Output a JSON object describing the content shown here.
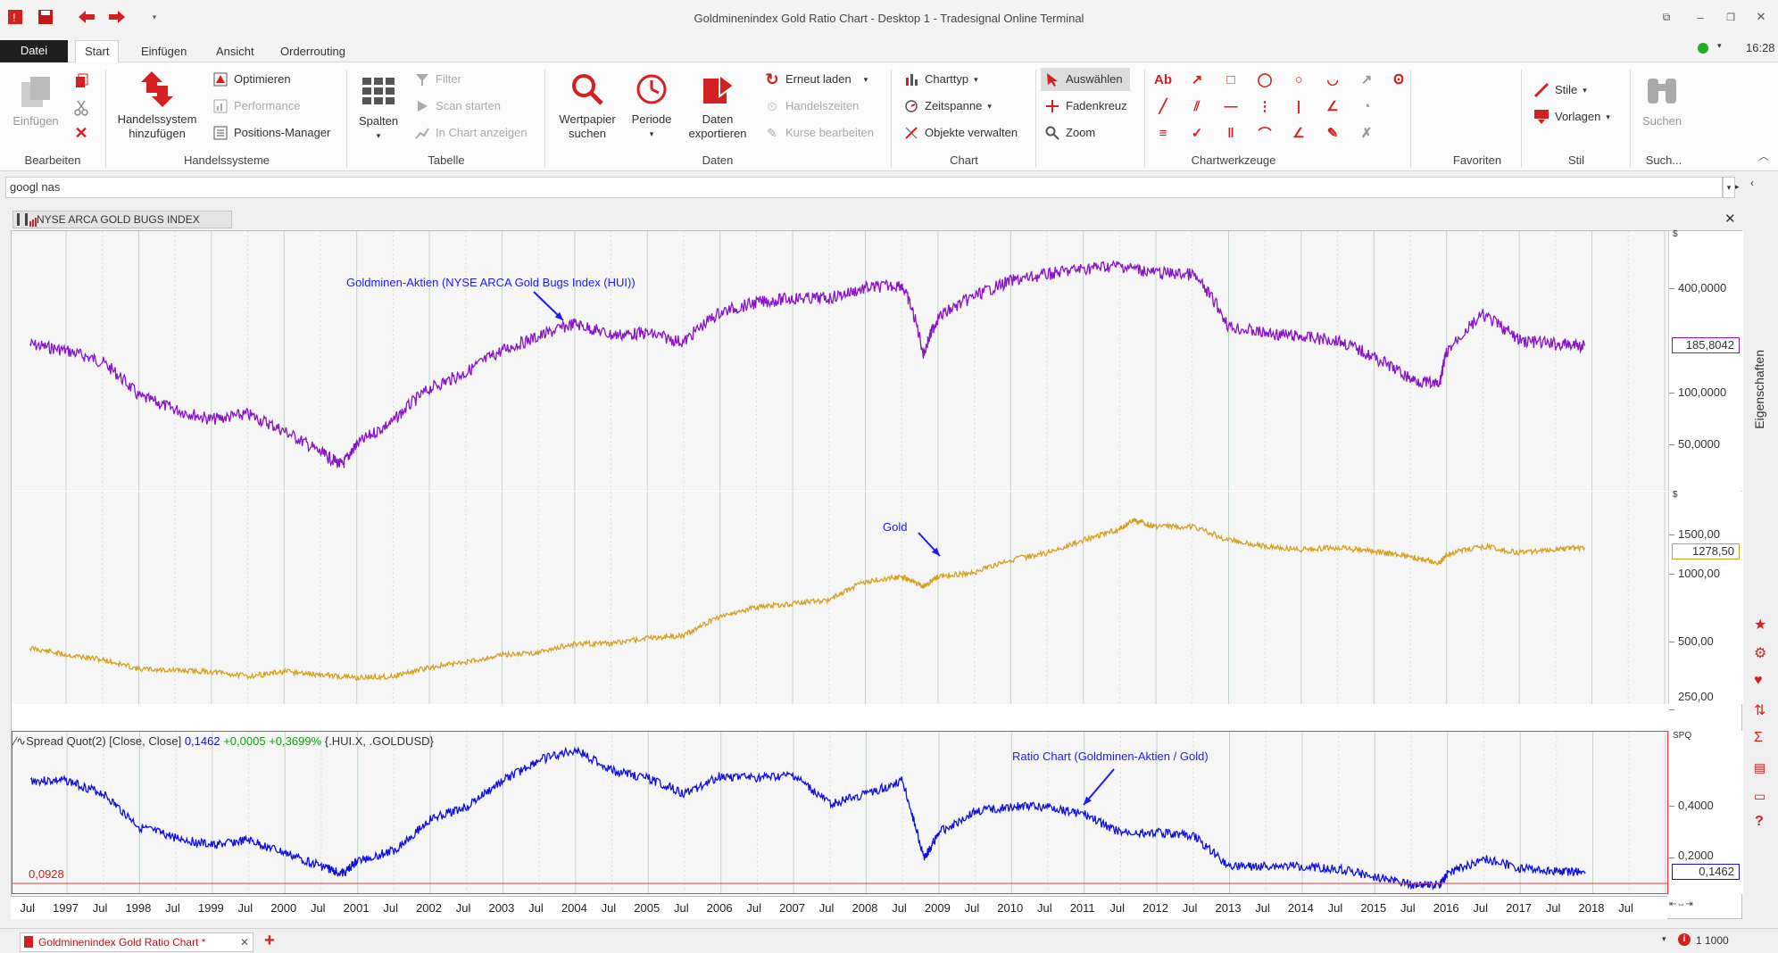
{
  "window": {
    "title": "Goldminenindex Gold Ratio Chart - Desktop 1 - Tradesignal Online Terminal",
    "time": "16:28"
  },
  "tabs": [
    {
      "label": "Datei"
    },
    {
      "label": "Start"
    },
    {
      "label": "Einfügen"
    },
    {
      "label": "Ansicht"
    },
    {
      "label": "Orderrouting"
    }
  ],
  "ribbon": {
    "bearbeiten": {
      "label": "Bearbeiten",
      "paste": "Einfügen"
    },
    "handelssysteme": {
      "label": "Handelssysteme",
      "add": "Handelssystem hinzufügen",
      "optimieren": "Optimieren",
      "performance": "Performance",
      "positions": "Positions-Manager"
    },
    "tabelle": {
      "label": "Tabelle",
      "spalten": "Spalten",
      "filter": "Filter",
      "scan": "Scan starten",
      "inchart": "In Chart anzeigen"
    },
    "daten": {
      "label": "Daten",
      "wertpapier": "Wertpapier suchen",
      "periode": "Periode",
      "export": "Daten exportieren",
      "reload": "Erneut laden",
      "zeiten": "Handelszeiten",
      "kurse": "Kurse bearbeiten"
    },
    "chart": {
      "label": "Chart",
      "typ": "Charttyp",
      "zeitspanne": "Zeitspanne",
      "objekte": "Objekte verwalten",
      "auswaehlen": "Auswählen",
      "fadenkreuz": "Fadenkreuz",
      "zoom": "Zoom"
    },
    "chartwerkzeuge": {
      "label": "Chartwerkzeuge"
    },
    "favoriten": {
      "label": "Favoriten"
    },
    "stil": {
      "label": "Stil",
      "stile": "Stile",
      "vorlagen": "Vorlagen"
    },
    "such": {
      "label": "Such...",
      "suchen": "Suchen"
    }
  },
  "search": {
    "value": "googl nas"
  },
  "chart_tab": "NYSE ARCA GOLD BUGS INDEX",
  "side_label": "Eigenschaften",
  "bottom": {
    "tab": "Goldminenindex Gold Ratio Chart *",
    "status": "1 1000"
  },
  "colors": {
    "hui": "#8a12c8",
    "gold": "#d4a020",
    "ratio": "#1010e0",
    "accent": "#d42020"
  },
  "chart_data": [
    {
      "type": "line",
      "pane": "top",
      "series": [
        {
          "name": "Goldminen-Aktien (NYSE ARCA Gold Bugs Index (HUI))",
          "x": [
            1996.5,
            1997,
            1997.5,
            1998,
            1998.5,
            1999,
            1999.5,
            2000,
            2000.5,
            2000.8,
            2001,
            2001.5,
            2002,
            2002.5,
            2003,
            2003.5,
            2004,
            2004.5,
            2005,
            2005.5,
            2006,
            2006.5,
            2007,
            2007.5,
            2008,
            2008.5,
            2008.8,
            2009,
            2009.5,
            2010,
            2010.5,
            2011,
            2011.5,
            2012,
            2012.5,
            2013,
            2013.5,
            2014,
            2014.5,
            2015,
            2015.5,
            2015.9,
            2016,
            2016.5,
            2017,
            2017.5,
            2017.9
          ],
          "values": [
            190,
            175,
            150,
            95,
            80,
            70,
            75,
            60,
            45,
            38,
            50,
            68,
            105,
            130,
            175,
            210,
            250,
            215,
            220,
            195,
            290,
            330,
            350,
            350,
            400,
            420,
            165,
            270,
            360,
            440,
            480,
            520,
            540,
            490,
            480,
            240,
            220,
            210,
            200,
            160,
            120,
            110,
            170,
            280,
            200,
            190,
            186
          ]
        }
      ],
      "yticks": [
        "400,0000",
        "100,0000",
        "50,0000"
      ],
      "unit": "$",
      "last": "185,8042"
    },
    {
      "type": "line",
      "pane": "middle",
      "series": [
        {
          "name": "Gold",
          "x": [
            1996.5,
            1997,
            1997.5,
            1998,
            1998.5,
            1999,
            1999.5,
            2000,
            2000.5,
            2001,
            2001.5,
            2002,
            2002.5,
            2003,
            2003.5,
            2004,
            2004.5,
            2005,
            2005.5,
            2006,
            2006.5,
            2007,
            2007.5,
            2008,
            2008.5,
            2008.8,
            2009,
            2009.5,
            2010,
            2010.5,
            2011,
            2011.5,
            2011.7,
            2012,
            2012.5,
            2013,
            2013.5,
            2014,
            2014.5,
            2015,
            2015.5,
            2015.9,
            2016,
            2016.5,
            2017,
            2017.5,
            2017.9
          ],
          "values": [
            380,
            350,
            330,
            295,
            290,
            285,
            270,
            285,
            275,
            265,
            270,
            300,
            320,
            350,
            360,
            400,
            400,
            430,
            440,
            560,
            620,
            650,
            680,
            850,
            900,
            800,
            900,
            950,
            1100,
            1200,
            1400,
            1600,
            1780,
            1650,
            1650,
            1400,
            1300,
            1250,
            1280,
            1220,
            1150,
            1060,
            1180,
            1300,
            1200,
            1260,
            1278.5
          ]
        }
      ],
      "yticks": [
        "1500,00",
        "1000,00",
        "500,00",
        "250,00"
      ],
      "unit": "$",
      "last": "1278,50"
    },
    {
      "type": "line",
      "pane": "bottom",
      "series": [
        {
          "name": "Spread Quot(2) [Close, Close]",
          "x": [
            1996.5,
            1997,
            1997.5,
            1998,
            1998.5,
            1999,
            1999.5,
            2000,
            2000.5,
            2000.8,
            2001,
            2001.5,
            2002,
            2002.5,
            2003,
            2003.5,
            2004,
            2004.5,
            2005,
            2005.5,
            2006,
            2006.5,
            2007,
            2007.5,
            2008,
            2008.5,
            2008.8,
            2009,
            2009.5,
            2010,
            2010.5,
            2011,
            2011.5,
            2012,
            2012.5,
            2013,
            2013.5,
            2014,
            2014.5,
            2015,
            2015.5,
            2015.9,
            2016,
            2016.5,
            2017,
            2017.5,
            2017.9
          ],
          "values": [
            0.5,
            0.5,
            0.45,
            0.32,
            0.28,
            0.25,
            0.27,
            0.22,
            0.17,
            0.14,
            0.19,
            0.23,
            0.35,
            0.4,
            0.5,
            0.58,
            0.62,
            0.54,
            0.51,
            0.45,
            0.52,
            0.51,
            0.52,
            0.41,
            0.45,
            0.5,
            0.2,
            0.3,
            0.38,
            0.4,
            0.4,
            0.37,
            0.3,
            0.3,
            0.29,
            0.17,
            0.17,
            0.17,
            0.16,
            0.13,
            0.1,
            0.1,
            0.14,
            0.2,
            0.16,
            0.15,
            0.1462
          ]
        }
      ],
      "legend": {
        "prefix": "∕∿Spread Quot(2) [Close, Close]",
        "value": "0,1462",
        "change": "+0,0005",
        "pct": "+0,3699%",
        "symbols": "{.HUI.X, .GOLDUSD}"
      },
      "yticks": [
        "0,4000",
        "0,2000"
      ],
      "unit": "SPQ",
      "last": "0,1462",
      "min": "0,0928"
    }
  ],
  "annotations": {
    "hui": "Goldminen-Aktien (NYSE ARCA Gold Bugs Index (HUI))",
    "gold": "Gold",
    "ratio": "Ratio Chart (Goldminen-Aktien / Gold)"
  },
  "xaxis": [
    "Jul",
    "1997",
    "Jul",
    "1998",
    "Jul",
    "1999",
    "Jul",
    "2000",
    "Jul",
    "2001",
    "Jul",
    "2002",
    "Jul",
    "2003",
    "Jul",
    "2004",
    "Jul",
    "2005",
    "Jul",
    "2006",
    "Jul",
    "2007",
    "Jul",
    "2008",
    "Jul",
    "2009",
    "Jul",
    "2010",
    "Jul",
    "2011",
    "Jul",
    "2012",
    "Jul",
    "2013",
    "Jul",
    "2014",
    "Jul",
    "2015",
    "Jul",
    "2016",
    "Jul",
    "2017",
    "Jul",
    "2018",
    "Jul"
  ]
}
